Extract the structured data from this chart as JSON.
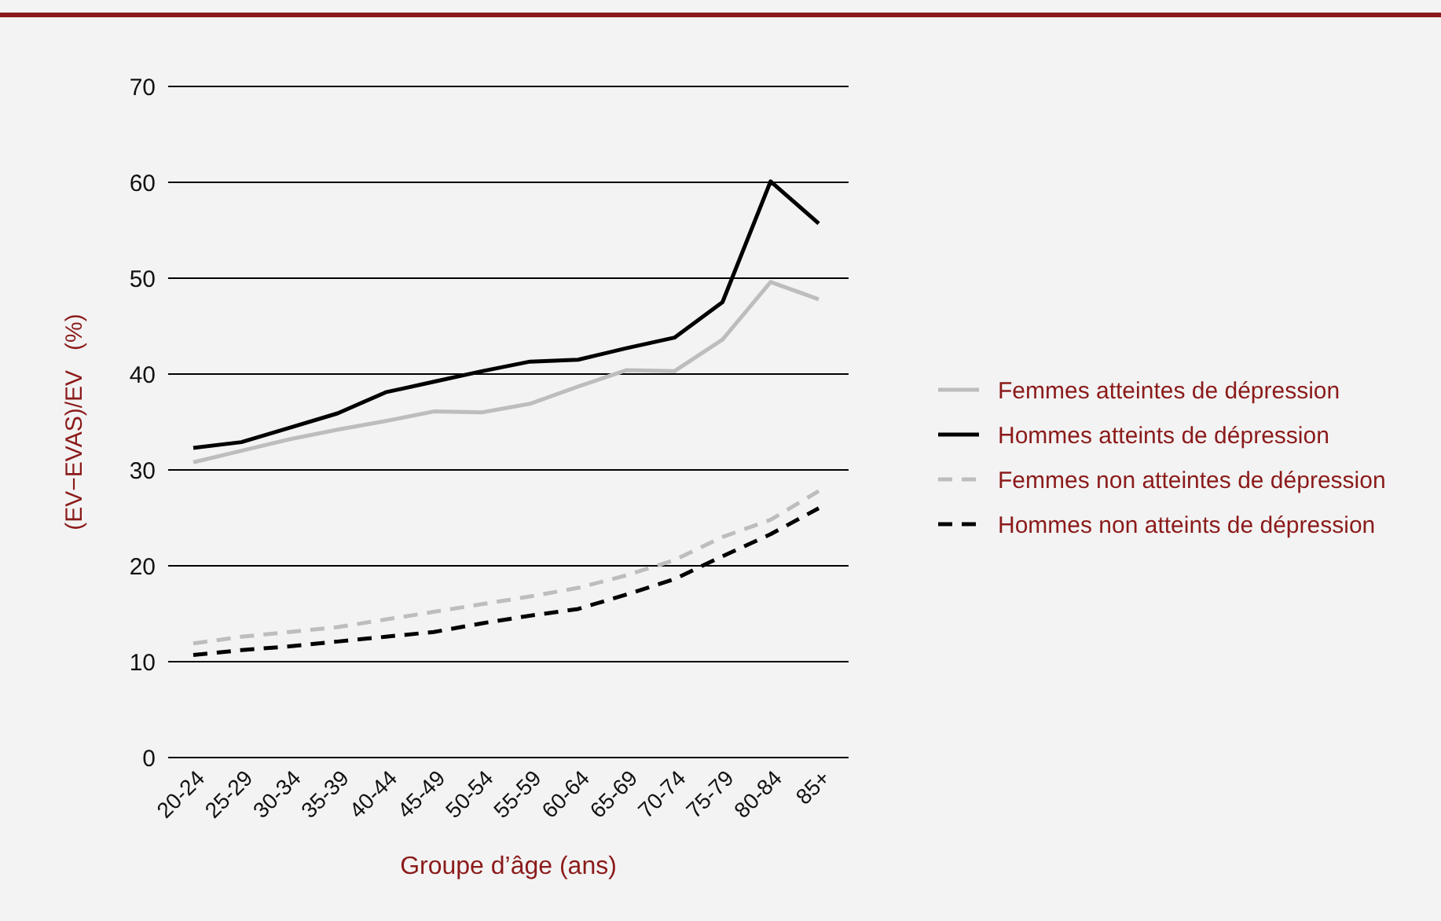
{
  "chart_data": {
    "type": "line",
    "xlabel": "Groupe d’âge (ans)",
    "ylabel": "(EV−EVAS)/EV   (%)",
    "categories": [
      "20-24",
      "25-29",
      "30-34",
      "35-39",
      "40-44",
      "45-49",
      "50-54",
      "55-59",
      "60-64",
      "65-69",
      "70-74",
      "75-79",
      "80-84",
      "85+"
    ],
    "series": [
      {
        "name": "Femmes atteintes de dépression",
        "color": "#bdbdbd",
        "line_style": "solid",
        "values": [
          30.8,
          32.0,
          33.2,
          34.2,
          35.1,
          36.1,
          36.0,
          36.9,
          38.7,
          40.4,
          40.3,
          43.6,
          49.6,
          47.8
        ]
      },
      {
        "name": "Hommes atteints de dépression",
        "color": "#000000",
        "line_style": "solid",
        "values": [
          32.3,
          32.9,
          34.4,
          35.9,
          38.1,
          39.2,
          40.3,
          41.3,
          41.5,
          42.7,
          43.8,
          47.5,
          60.1,
          55.7
        ]
      },
      {
        "name": "Femmes non atteintes de dépression",
        "color": "#bdbdbd",
        "line_style": "dashed",
        "values": [
          11.9,
          12.6,
          13.1,
          13.6,
          14.4,
          15.2,
          16.0,
          16.8,
          17.7,
          19.0,
          20.6,
          23.0,
          24.8,
          27.8
        ]
      },
      {
        "name": "Hommes non atteints de dépression",
        "color": "#000000",
        "line_style": "dashed",
        "values": [
          10.7,
          11.2,
          11.6,
          12.1,
          12.6,
          13.1,
          14.0,
          14.8,
          15.5,
          17.0,
          18.6,
          21.0,
          23.3,
          26.0
        ]
      }
    ],
    "ylim": [
      0,
      70
    ],
    "yticks": [
      0,
      10,
      20,
      30,
      40,
      50,
      60,
      70
    ],
    "grid": "y",
    "legend": "right",
    "marker": "none"
  }
}
